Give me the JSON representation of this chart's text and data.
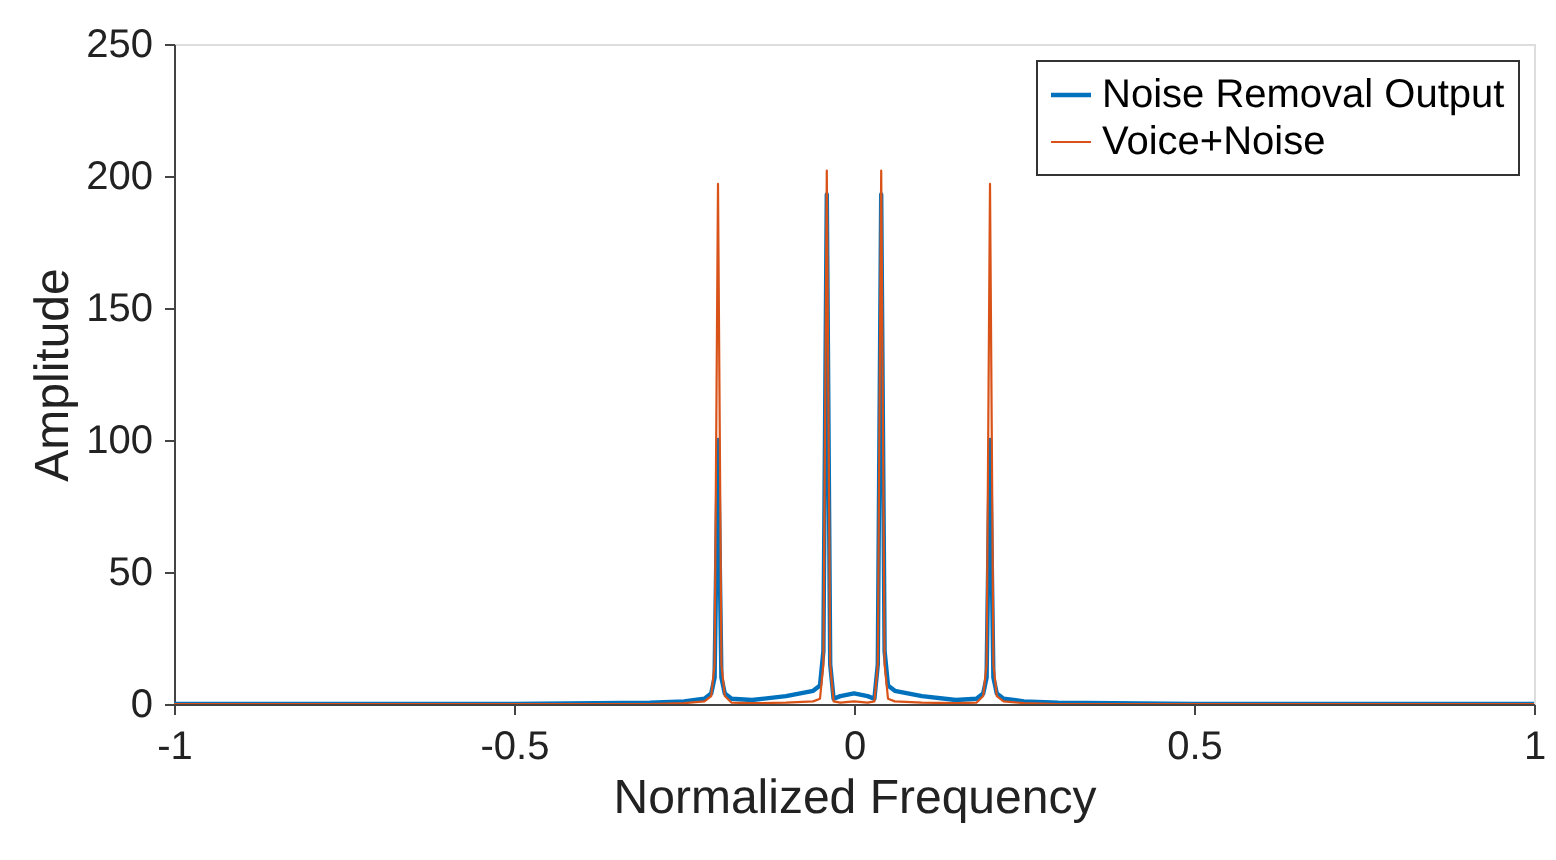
{
  "chart_data": {
    "type": "line",
    "xlabel": "Normalized Frequency",
    "ylabel": "Amplitude",
    "xlim": [
      -1,
      1
    ],
    "xticks": [
      -1,
      -0.5,
      0,
      0.5,
      1
    ],
    "ylim": [
      0,
      250
    ],
    "yticks": [
      0,
      50,
      100,
      150,
      200,
      250
    ],
    "grid": false,
    "legend": "top right",
    "marker": "none",
    "line_style": "solid",
    "x": [
      -1,
      -0.5,
      -0.3,
      -0.25,
      -0.22,
      -0.21,
      -0.205,
      -0.2,
      -0.195,
      -0.19,
      -0.18,
      -0.15,
      -0.1,
      -0.06,
      -0.05,
      -0.045,
      -0.04,
      -0.035,
      -0.03,
      -0.02,
      0,
      0.02,
      0.03,
      0.035,
      0.04,
      0.045,
      0.05,
      0.06,
      0.1,
      0.15,
      0.18,
      0.19,
      0.195,
      0.2,
      0.205,
      0.21,
      0.22,
      0.25,
      0.3,
      0.5,
      1
    ],
    "series": [
      {
        "name": "Noise Removal Output",
        "color": "#0072bd",
        "values": [
          0,
          0,
          0.5,
          1,
          2,
          4,
          10,
          100,
          10,
          4,
          2,
          1.5,
          3,
          5,
          7,
          20,
          193,
          15,
          2,
          3,
          4,
          3,
          2,
          15,
          193,
          20,
          7,
          5,
          3,
          1.5,
          2,
          4,
          10,
          100,
          10,
          4,
          2,
          1,
          0.5,
          0,
          0
        ]
      },
      {
        "name": "Voice+Noise",
        "color": "#d95319",
        "values": [
          0,
          0,
          0,
          0.3,
          1,
          3,
          15,
          197,
          15,
          3,
          0.5,
          0.3,
          0.5,
          1,
          2,
          15,
          202,
          15,
          1,
          0.5,
          1,
          0.5,
          1,
          15,
          202,
          15,
          2,
          1,
          0.5,
          0.3,
          0.5,
          3,
          15,
          197,
          15,
          3,
          1,
          0.3,
          0,
          0,
          0
        ]
      }
    ]
  }
}
